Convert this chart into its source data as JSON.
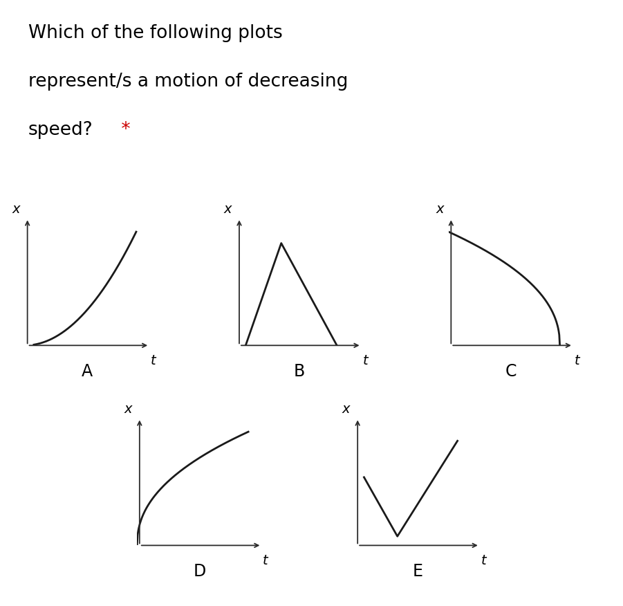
{
  "title_line1": "Which of the following plots",
  "title_line2": "represent/s a motion of decreasing",
  "title_line3": "speed?",
  "title_star": " *",
  "background_color": "#ffffff",
  "text_color": "#000000",
  "star_color": "#cc0000",
  "curve_color": "#1a1a1a",
  "axis_color": "#2a2a2a",
  "title_fontsize": 19,
  "label_fontsize": 17,
  "axis_label_fontsize": 14
}
